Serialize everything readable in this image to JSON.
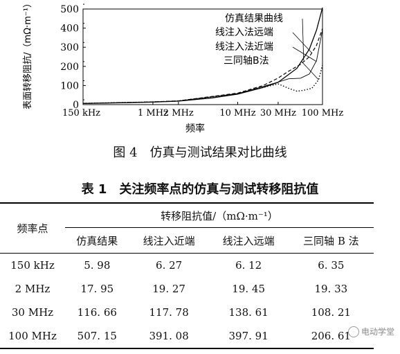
{
  "figure": {
    "caption": "图 4　仿真与测试结果对比曲线",
    "chart_data": {
      "type": "line",
      "xlabel": "频率",
      "ylabel": "表面转移阻抗/（mΩ·m⁻¹）",
      "xscale": "log",
      "xlim": [
        150000,
        100000000
      ],
      "ylim": [
        0,
        500
      ],
      "x_ticks": [
        {
          "v": 150000,
          "label": "150 kHz"
        },
        {
          "v": 1000000,
          "label": "1 MHz"
        },
        {
          "v": 2000000,
          "label": "2 MHz"
        },
        {
          "v": 10000000,
          "label": "10 MHz"
        },
        {
          "v": 30000000,
          "label": "30 MHz"
        },
        {
          "v": 100000000,
          "label": "100 MHz"
        }
      ],
      "y_ticks": [
        0,
        100,
        200,
        300,
        400,
        500
      ],
      "series": [
        {
          "name": "仿真结果曲线",
          "style": "solid",
          "points": [
            [
              150000,
              5.98
            ],
            [
              500000,
              10
            ],
            [
              1000000,
              13
            ],
            [
              2000000,
              17.95
            ],
            [
              5000000,
              35
            ],
            [
              10000000,
              55
            ],
            [
              20000000,
              90
            ],
            [
              30000000,
              116.66
            ],
            [
              50000000,
              190
            ],
            [
              70000000,
              290
            ],
            [
              85000000,
              390
            ],
            [
              100000000,
              507.15
            ]
          ]
        },
        {
          "name": "线注入法远端",
          "style": "dashed",
          "points": [
            [
              150000,
              6.12
            ],
            [
              1000000,
              14
            ],
            [
              2000000,
              19.45
            ],
            [
              10000000,
              60
            ],
            [
              20000000,
              100
            ],
            [
              30000000,
              138.61
            ],
            [
              40000000,
              175
            ],
            [
              55000000,
              210
            ],
            [
              70000000,
              250
            ],
            [
              85000000,
              310
            ],
            [
              100000000,
              397.91
            ]
          ]
        },
        {
          "name": "线注入法近端",
          "style": "solid-thin",
          "points": [
            [
              150000,
              6.27
            ],
            [
              1000000,
              14
            ],
            [
              2000000,
              19.27
            ],
            [
              10000000,
              58
            ],
            [
              20000000,
              95
            ],
            [
              30000000,
              117.78
            ],
            [
              40000000,
              135
            ],
            [
              55000000,
              138
            ],
            [
              70000000,
              160
            ],
            [
              85000000,
              230
            ],
            [
              100000000,
              391.08
            ]
          ]
        },
        {
          "name": "三同轴B法",
          "style": "dotted",
          "points": [
            [
              150000,
              6.35
            ],
            [
              1000000,
              14
            ],
            [
              2000000,
              19.33
            ],
            [
              10000000,
              57
            ],
            [
              20000000,
              90
            ],
            [
              30000000,
              108.21
            ],
            [
              40000000,
              85
            ],
            [
              50000000,
              70
            ],
            [
              60000000,
              75
            ],
            [
              75000000,
              85
            ],
            [
              90000000,
              130
            ],
            [
              100000000,
              206.61
            ]
          ]
        }
      ]
    }
  },
  "table": {
    "title": "表 1　关注频率点的仿真与测试转移阻抗值",
    "row_header": "频率点",
    "group_header": "转移阻抗值/（mΩ·m⁻¹）",
    "columns": [
      "仿真结果",
      "线注入近端",
      "线注入远端",
      "三同轴 B 法"
    ],
    "rows": [
      {
        "freq": "150 kHz",
        "values": [
          "5. 98",
          "6. 27",
          "6. 12",
          "6. 35"
        ]
      },
      {
        "freq": "2 MHz",
        "values": [
          "17. 95",
          "19. 27",
          "19. 45",
          "19. 33"
        ]
      },
      {
        "freq": "30 MHz",
        "values": [
          "116. 66",
          "117. 78",
          "138. 61",
          "108. 21"
        ]
      },
      {
        "freq": "100 MHz",
        "values": [
          "507. 15",
          "391. 08",
          "397. 91",
          "206. 61"
        ]
      }
    ]
  },
  "watermark": {
    "text": "电动学堂"
  }
}
